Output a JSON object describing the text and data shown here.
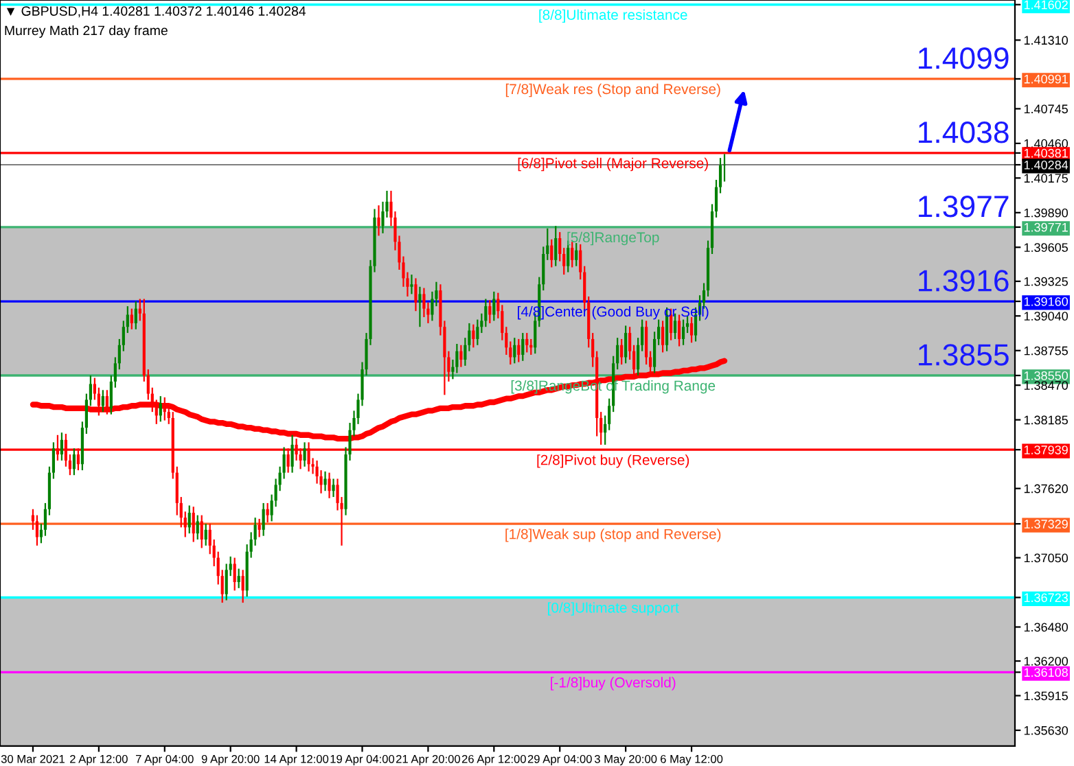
{
  "chart_data": {
    "type": "candlestick",
    "title": "▼ GBPUSD,H4 1.40281 1.40372 1.40146 1.40284",
    "subtitle": "Murrey Math 217 day frame",
    "categories": [
      "30 Mar 2021",
      null,
      null,
      null,
      null,
      null,
      null,
      null,
      null,
      null,
      null,
      null,
      null,
      null,
      null,
      null,
      "2 Apr 12:00",
      null,
      null,
      null,
      null,
      null,
      null,
      null,
      null,
      null,
      null,
      null,
      null,
      null,
      null,
      null,
      "7 Apr 04:00",
      null,
      null,
      null,
      null,
      null,
      null,
      null,
      null,
      null,
      null,
      null,
      null,
      null,
      null,
      null,
      "9 Apr 20:00",
      null,
      null,
      null,
      null,
      null,
      null,
      null,
      null,
      null,
      null,
      null,
      null,
      null,
      null,
      null,
      "14 Apr 12:00",
      null,
      null,
      null,
      null,
      null,
      null,
      null,
      null,
      null,
      null,
      null,
      null,
      null,
      null,
      null,
      "19 Apr 04:00",
      null,
      null,
      null,
      null,
      null,
      null,
      null,
      null,
      null,
      null,
      null,
      null,
      null,
      null,
      null,
      "21 Apr 20:00",
      null,
      null,
      null,
      null,
      null,
      null,
      null,
      null,
      null,
      null,
      null,
      null,
      null,
      null,
      null,
      "26 Apr 12:00",
      null,
      null,
      null,
      null,
      null,
      null,
      null,
      null,
      null,
      null,
      null,
      null,
      null,
      null,
      null,
      "29 Apr 04:00",
      null,
      null,
      null,
      null,
      null,
      null,
      null,
      null,
      null,
      null,
      null,
      null,
      null,
      null,
      null,
      "3 May 20:00",
      null,
      null,
      null,
      null,
      null,
      null,
      null,
      null,
      null,
      null,
      null,
      null,
      null,
      null,
      null,
      "6 May 12:00",
      null,
      null,
      null,
      null,
      null,
      null,
      null,
      null
    ],
    "ohlc": [
      [
        1.374,
        1.3745,
        1.3728,
        1.3735
      ],
      [
        1.3735,
        1.374,
        1.3715,
        1.3722
      ],
      [
        1.3722,
        1.3733,
        1.3717,
        1.3728
      ],
      [
        1.3728,
        1.375,
        1.3723,
        1.3745
      ],
      [
        1.3745,
        1.378,
        1.374,
        1.3775
      ],
      [
        1.3775,
        1.38,
        1.377,
        1.3795
      ],
      [
        1.3795,
        1.3806,
        1.3785,
        1.379
      ],
      [
        1.379,
        1.3808,
        1.3785,
        1.3802
      ],
      [
        1.3802,
        1.3807,
        1.378,
        1.3785
      ],
      [
        1.3785,
        1.379,
        1.3773,
        1.3778
      ],
      [
        1.3778,
        1.3795,
        1.3773,
        1.379
      ],
      [
        1.379,
        1.3795,
        1.3777,
        1.3782
      ],
      [
        1.3782,
        1.3817,
        1.3777,
        1.3812
      ],
      [
        1.3812,
        1.384,
        1.3807,
        1.3835
      ],
      [
        1.3835,
        1.3855,
        1.383,
        1.3848
      ],
      [
        1.3848,
        1.3853,
        1.3835,
        1.384
      ],
      [
        1.384,
        1.3845,
        1.3822,
        1.383
      ],
      [
        1.383,
        1.3843,
        1.3825,
        1.3838
      ],
      [
        1.3838,
        1.3843,
        1.3823,
        1.3828
      ],
      [
        1.3828,
        1.3855,
        1.3823,
        1.385
      ],
      [
        1.385,
        1.387,
        1.3845,
        1.3865
      ],
      [
        1.3865,
        1.3885,
        1.386,
        1.388
      ],
      [
        1.388,
        1.39,
        1.3875,
        1.3895
      ],
      [
        1.3895,
        1.3912,
        1.389,
        1.3905
      ],
      [
        1.3905,
        1.391,
        1.3893,
        1.3898
      ],
      [
        1.3898,
        1.3916,
        1.3893,
        1.391
      ],
      [
        1.391,
        1.3918,
        1.39,
        1.3906
      ],
      [
        1.3906,
        1.3918,
        1.385,
        1.3855
      ],
      [
        1.3855,
        1.386,
        1.3835,
        1.384
      ],
      [
        1.384,
        1.3845,
        1.3825,
        1.383
      ],
      [
        1.383,
        1.3835,
        1.3815,
        1.3822
      ],
      [
        1.3822,
        1.3838,
        1.3817,
        1.3832
      ],
      [
        1.3832,
        1.3837,
        1.3818,
        1.3825
      ],
      [
        1.3825,
        1.383,
        1.3815,
        1.382
      ],
      [
        1.382,
        1.3825,
        1.377,
        1.3775
      ],
      [
        1.3775,
        1.378,
        1.374,
        1.375
      ],
      [
        1.375,
        1.3755,
        1.373,
        1.3738
      ],
      [
        1.3738,
        1.3743,
        1.3722,
        1.373
      ],
      [
        1.373,
        1.3748,
        1.3725,
        1.3742
      ],
      [
        1.3742,
        1.3747,
        1.3718,
        1.3725
      ],
      [
        1.3725,
        1.374,
        1.372,
        1.3735
      ],
      [
        1.3735,
        1.374,
        1.3713,
        1.372
      ],
      [
        1.372,
        1.3733,
        1.3715,
        1.3728
      ],
      [
        1.3728,
        1.3733,
        1.3708,
        1.3715
      ],
      [
        1.3715,
        1.372,
        1.3698,
        1.3705
      ],
      [
        1.3705,
        1.371,
        1.3683,
        1.369
      ],
      [
        1.369,
        1.3695,
        1.3668,
        1.3675
      ],
      [
        1.3675,
        1.37,
        1.367,
        1.3695
      ],
      [
        1.3695,
        1.3706,
        1.369,
        1.37
      ],
      [
        1.37,
        1.3705,
        1.3678,
        1.3685
      ],
      [
        1.3685,
        1.3696,
        1.368,
        1.369
      ],
      [
        1.369,
        1.3695,
        1.3668,
        1.3678
      ],
      [
        1.3678,
        1.3716,
        1.3673,
        1.371
      ],
      [
        1.371,
        1.3726,
        1.3705,
        1.372
      ],
      [
        1.372,
        1.3738,
        1.3715,
        1.3732
      ],
      [
        1.3732,
        1.3737,
        1.3722,
        1.3728
      ],
      [
        1.3728,
        1.375,
        1.3723,
        1.3745
      ],
      [
        1.3745,
        1.375,
        1.3734,
        1.374
      ],
      [
        1.374,
        1.3757,
        1.3735,
        1.3752
      ],
      [
        1.3752,
        1.377,
        1.3747,
        1.3765
      ],
      [
        1.3765,
        1.378,
        1.376,
        1.3775
      ],
      [
        1.3775,
        1.3796,
        1.377,
        1.379
      ],
      [
        1.379,
        1.3795,
        1.3775,
        1.378
      ],
      [
        1.378,
        1.3806,
        1.3775,
        1.3798
      ],
      [
        1.3798,
        1.3803,
        1.3785,
        1.379
      ],
      [
        1.379,
        1.3795,
        1.3778,
        1.3785
      ],
      [
        1.3785,
        1.38,
        1.378,
        1.3795
      ],
      [
        1.3795,
        1.38,
        1.3776,
        1.3782
      ],
      [
        1.3782,
        1.3787,
        1.3774,
        1.378
      ],
      [
        1.378,
        1.3785,
        1.3766,
        1.3772
      ],
      [
        1.3772,
        1.3777,
        1.3758,
        1.3765
      ],
      [
        1.3765,
        1.3776,
        1.376,
        1.377
      ],
      [
        1.377,
        1.3775,
        1.3754,
        1.376
      ],
      [
        1.376,
        1.377,
        1.3755,
        1.3765
      ],
      [
        1.3765,
        1.377,
        1.3744,
        1.375
      ],
      [
        1.375,
        1.3755,
        1.3715,
        1.3745
      ],
      [
        1.3745,
        1.3796,
        1.374,
        1.379
      ],
      [
        1.379,
        1.3816,
        1.3785,
        1.381
      ],
      [
        1.381,
        1.3826,
        1.3805,
        1.382
      ],
      [
        1.382,
        1.384,
        1.3815,
        1.3835
      ],
      [
        1.3835,
        1.3866,
        1.383,
        1.386
      ],
      [
        1.386,
        1.389,
        1.3855,
        1.3885
      ],
      [
        1.3885,
        1.395,
        1.388,
        1.3945
      ],
      [
        1.3945,
        1.3992,
        1.394,
        1.3985
      ],
      [
        1.3985,
        1.3995,
        1.397,
        1.3978
      ],
      [
        1.3978,
        1.3998,
        1.3972,
        1.399
      ],
      [
        1.399,
        1.4007,
        1.3985,
        1.3998
      ],
      [
        1.3998,
        1.4007,
        1.3978,
        1.3985
      ],
      [
        1.3985,
        1.399,
        1.3958,
        1.3965
      ],
      [
        1.3965,
        1.397,
        1.3942,
        1.3948
      ],
      [
        1.3948,
        1.3953,
        1.3928,
        1.3935
      ],
      [
        1.3935,
        1.394,
        1.392,
        1.3928
      ],
      [
        1.3928,
        1.3938,
        1.3922,
        1.393
      ],
      [
        1.393,
        1.3935,
        1.3908,
        1.3915
      ],
      [
        1.3915,
        1.3928,
        1.3895,
        1.3922
      ],
      [
        1.3922,
        1.3927,
        1.3903,
        1.391
      ],
      [
        1.391,
        1.3915,
        1.3898,
        1.3905
      ],
      [
        1.3905,
        1.3924,
        1.39,
        1.3918
      ],
      [
        1.3918,
        1.3932,
        1.3912,
        1.3925
      ],
      [
        1.3925,
        1.393,
        1.3888,
        1.3895
      ],
      [
        1.3895,
        1.39,
        1.3839,
        1.387
      ],
      [
        1.387,
        1.3875,
        1.385,
        1.3858
      ],
      [
        1.3858,
        1.3868,
        1.3852,
        1.3862
      ],
      [
        1.3862,
        1.3881,
        1.3857,
        1.3875
      ],
      [
        1.3875,
        1.388,
        1.3862,
        1.3868
      ],
      [
        1.3868,
        1.3886,
        1.3863,
        1.388
      ],
      [
        1.388,
        1.3898,
        1.3875,
        1.3892
      ],
      [
        1.3892,
        1.3897,
        1.3878,
        1.3885
      ],
      [
        1.3885,
        1.3901,
        1.388,
        1.3895
      ],
      [
        1.3895,
        1.3906,
        1.389,
        1.39
      ],
      [
        1.39,
        1.3918,
        1.3895,
        1.3912
      ],
      [
        1.3912,
        1.3917,
        1.3898,
        1.3905
      ],
      [
        1.3905,
        1.3924,
        1.39,
        1.3918
      ],
      [
        1.3918,
        1.3923,
        1.3902,
        1.3908
      ],
      [
        1.3908,
        1.3913,
        1.3884,
        1.389
      ],
      [
        1.389,
        1.3895,
        1.3872,
        1.3878
      ],
      [
        1.3878,
        1.3883,
        1.3864,
        1.387
      ],
      [
        1.387,
        1.3886,
        1.3865,
        1.388
      ],
      [
        1.388,
        1.3885,
        1.3866,
        1.3872
      ],
      [
        1.3872,
        1.389,
        1.3867,
        1.3885
      ],
      [
        1.3885,
        1.389,
        1.3874,
        1.388
      ],
      [
        1.388,
        1.3885,
        1.3872,
        1.3878
      ],
      [
        1.3878,
        1.3906,
        1.3873,
        1.39
      ],
      [
        1.39,
        1.3936,
        1.3895,
        1.393
      ],
      [
        1.393,
        1.3961,
        1.3925,
        1.3955
      ],
      [
        1.3955,
        1.3976,
        1.395,
        1.3962
      ],
      [
        1.3962,
        1.3967,
        1.3944,
        1.395
      ],
      [
        1.395,
        1.3978,
        1.3945,
        1.3968
      ],
      [
        1.3968,
        1.3973,
        1.3949,
        1.3955
      ],
      [
        1.3955,
        1.396,
        1.3938,
        1.3945
      ],
      [
        1.3945,
        1.3966,
        1.394,
        1.396
      ],
      [
        1.396,
        1.3965,
        1.3944,
        1.395
      ],
      [
        1.395,
        1.3964,
        1.3945,
        1.3958
      ],
      [
        1.3958,
        1.3963,
        1.3934,
        1.394
      ],
      [
        1.394,
        1.3945,
        1.3908,
        1.3915
      ],
      [
        1.3915,
        1.392,
        1.3878,
        1.3885
      ],
      [
        1.3885,
        1.389,
        1.3862,
        1.387
      ],
      [
        1.387,
        1.3875,
        1.3805,
        1.382
      ],
      [
        1.382,
        1.3825,
        1.3798,
        1.3808
      ],
      [
        1.3808,
        1.3822,
        1.3798,
        1.3815
      ],
      [
        1.3815,
        1.3836,
        1.381,
        1.383
      ],
      [
        1.383,
        1.3871,
        1.3825,
        1.3865
      ],
      [
        1.3865,
        1.3886,
        1.386,
        1.388
      ],
      [
        1.388,
        1.3885,
        1.3864,
        1.387
      ],
      [
        1.387,
        1.3896,
        1.3865,
        1.389
      ],
      [
        1.389,
        1.3895,
        1.3868,
        1.3875
      ],
      [
        1.3875,
        1.388,
        1.3853,
        1.386
      ],
      [
        1.386,
        1.3886,
        1.3855,
        1.388
      ],
      [
        1.388,
        1.3901,
        1.3875,
        1.3895
      ],
      [
        1.3895,
        1.39,
        1.3864,
        1.387
      ],
      [
        1.387,
        1.3875,
        1.3856,
        1.3862
      ],
      [
        1.3862,
        1.3891,
        1.3857,
        1.3885
      ],
      [
        1.3885,
        1.3901,
        1.388,
        1.3895
      ],
      [
        1.3895,
        1.39,
        1.3874,
        1.388
      ],
      [
        1.388,
        1.3911,
        1.3875,
        1.3905
      ],
      [
        1.3905,
        1.391,
        1.3884,
        1.389
      ],
      [
        1.389,
        1.3906,
        1.3885,
        1.39
      ],
      [
        1.39,
        1.3905,
        1.3879,
        1.3885
      ],
      [
        1.3885,
        1.3901,
        1.388,
        1.3895
      ],
      [
        1.3895,
        1.3904,
        1.389,
        1.3898
      ],
      [
        1.3898,
        1.3903,
        1.3882,
        1.3888
      ],
      [
        1.3888,
        1.3911,
        1.3883,
        1.3905
      ],
      [
        1.3905,
        1.3921,
        1.39,
        1.3915
      ],
      [
        1.3915,
        1.3931,
        1.391,
        1.3925
      ],
      [
        1.3925,
        1.3966,
        1.392,
        1.396
      ],
      [
        1.396,
        1.3996,
        1.3955,
        1.399
      ],
      [
        1.399,
        1.4016,
        1.3985,
        1.401
      ],
      [
        1.401,
        1.4034,
        1.4005,
        1.4028
      ],
      [
        1.40281,
        1.40372,
        1.40146,
        1.40284
      ]
    ],
    "series": [
      {
        "type": "line",
        "color": "#ff0000",
        "values": [
          1.3831,
          1.3831,
          1.383,
          1.383,
          1.383,
          1.3829,
          1.3829,
          1.3829,
          1.3828,
          1.3828,
          1.3828,
          1.3828,
          1.3828,
          1.3828,
          1.3827,
          1.3827,
          1.3827,
          1.3827,
          1.3827,
          1.3827,
          1.3828,
          1.3828,
          1.3829,
          1.3829,
          1.383,
          1.383,
          1.3831,
          1.3831,
          1.3831,
          1.3831,
          1.3831,
          1.383,
          1.383,
          1.383,
          1.3829,
          1.3827,
          1.3826,
          1.3825,
          1.3823,
          1.3822,
          1.3821,
          1.3819,
          1.3818,
          1.3817,
          1.3817,
          1.3816,
          1.3816,
          1.3815,
          1.3815,
          1.3814,
          1.3813,
          1.3813,
          1.3812,
          1.3812,
          1.3811,
          1.3811,
          1.381,
          1.381,
          1.3809,
          1.3809,
          1.3808,
          1.3808,
          1.3807,
          1.3807,
          1.3807,
          1.3806,
          1.3806,
          1.3806,
          1.3805,
          1.3805,
          1.3805,
          1.3804,
          1.3804,
          1.3804,
          1.3803,
          1.3803,
          1.3803,
          1.3803,
          1.3804,
          1.3804,
          1.3805,
          1.3807,
          1.3808,
          1.381,
          1.3812,
          1.3813,
          1.3815,
          1.3817,
          1.3818,
          1.382,
          1.3821,
          1.3822,
          1.3823,
          1.3823,
          1.3824,
          1.3825,
          1.3826,
          1.3826,
          1.3827,
          1.3828,
          1.3828,
          1.3828,
          1.3829,
          1.3829,
          1.3829,
          1.383,
          1.383,
          1.383,
          1.3831,
          1.3831,
          1.3832,
          1.3833,
          1.3833,
          1.3834,
          1.3835,
          1.3836,
          1.3836,
          1.3837,
          1.3838,
          1.3838,
          1.3839,
          1.384,
          1.3841,
          1.3841,
          1.3842,
          1.3843,
          1.3843,
          1.3844,
          1.3845,
          1.3846,
          1.3846,
          1.3847,
          1.3847,
          1.3848,
          1.3848,
          1.3849,
          1.3849,
          1.385,
          1.3851,
          1.3851,
          1.3852,
          1.3852,
          1.3853,
          1.3853,
          1.3854,
          1.3854,
          1.3854,
          1.3855,
          1.3855,
          1.3855,
          1.3856,
          1.3856,
          1.3856,
          1.3857,
          1.3857,
          1.3857,
          1.3858,
          1.3858,
          1.3859,
          1.3859,
          1.386,
          1.386,
          1.3861,
          1.3861,
          1.3862,
          1.3863,
          1.3864,
          1.3866,
          1.3867
        ]
      }
    ],
    "ylim": [
      1.355,
      1.4164
    ],
    "yticks": [
      {
        "value": 1.41602,
        "label": "1.41602"
      },
      {
        "value": 1.4131,
        "label": "1.41310"
      },
      {
        "value": 1.40991,
        "label": "1.40991"
      },
      {
        "value": 1.40745,
        "label": "1.40745"
      },
      {
        "value": 1.4046,
        "label": "1.40460"
      },
      {
        "value": 1.40381,
        "label": "1.40381"
      },
      {
        "value": 1.40284,
        "label": "1.40284"
      },
      {
        "value": 1.40175,
        "label": "1.40175"
      },
      {
        "value": 1.3989,
        "label": "1.39890"
      },
      {
        "value": 1.39771,
        "label": "1.39771"
      },
      {
        "value": 1.39605,
        "label": "1.39605"
      },
      {
        "value": 1.39325,
        "label": "1.39325"
      },
      {
        "value": 1.3916,
        "label": "1.39160"
      },
      {
        "value": 1.3904,
        "label": "1.39040"
      },
      {
        "value": 1.38755,
        "label": "1.38755"
      },
      {
        "value": 1.3855,
        "label": "1.38550"
      },
      {
        "value": 1.3847,
        "label": "1.38470"
      },
      {
        "value": 1.38185,
        "label": "1.38185"
      },
      {
        "value": 1.37939,
        "label": "1.37939"
      },
      {
        "value": 1.3762,
        "label": "1.37620"
      },
      {
        "value": 1.37329,
        "label": "1.37329"
      },
      {
        "value": 1.3705,
        "label": "1.37050"
      },
      {
        "value": 1.36723,
        "label": "1.36723"
      },
      {
        "value": 1.3648,
        "label": "1.36480"
      },
      {
        "value": 1.362,
        "label": "1.36200"
      },
      {
        "value": 1.36108,
        "label": "1.36108"
      },
      {
        "value": 1.35915,
        "label": "1.35915"
      },
      {
        "value": 1.3563,
        "label": "1.35630"
      }
    ],
    "bands": [
      {
        "axis": "y",
        "from": 1.3855,
        "to": 1.39771,
        "color": "#c0c0c0"
      },
      {
        "axis": "y",
        "from": 1.355,
        "to": 1.36723,
        "color": "#c0c0c0"
      }
    ],
    "ref_lines": [
      {
        "axis": "y",
        "value": 1.41602,
        "label": "[8/8]Ultimate resistance",
        "color": "#00ffff"
      },
      {
        "axis": "y",
        "value": 1.40991,
        "label": "[7/8]Weak res (Stop and Reverse)",
        "color": "#ff6020"
      },
      {
        "axis": "y",
        "value": 1.40381,
        "label": "[6/8]Pivot sell (Major Reverse)",
        "color": "#ff0000"
      },
      {
        "axis": "y",
        "value": 1.40284,
        "color": "#000000"
      },
      {
        "axis": "y",
        "value": 1.39771,
        "label": "[5/8]RangeTop",
        "color": "#3cb371"
      },
      {
        "axis": "y",
        "value": 1.3916,
        "label": "[4/8]Center (Good Buy or Sell)",
        "color": "#0000ff"
      },
      {
        "axis": "y",
        "value": 1.3855,
        "label": "[3/8]RangeBot of Trading Range",
        "color": "#3cb371"
      },
      {
        "axis": "y",
        "value": 1.37939,
        "label": "[2/8]Pivot buy (Reverse)",
        "color": "#ff0000"
      },
      {
        "axis": "y",
        "value": 1.37329,
        "label": "[1/8]Weak sup (stop and Reverse)",
        "color": "#ff6020"
      },
      {
        "axis": "y",
        "value": 1.36723,
        "label": "[0/8]Ultimate support",
        "color": "#00ffff"
      },
      {
        "axis": "y",
        "value": 1.36108,
        "label": "[-1/8]buy (Oversold)",
        "color": "#ff00ff"
      }
    ],
    "annotations": [
      {
        "text": "1.4099",
        "y": 1.40991
      },
      {
        "text": "1.4038",
        "y": 1.40381
      },
      {
        "text": "1.3977",
        "y": 1.39771
      },
      {
        "text": "1.3916",
        "y": 1.3916
      },
      {
        "text": "1.3855",
        "y": 1.3855
      }
    ]
  }
}
